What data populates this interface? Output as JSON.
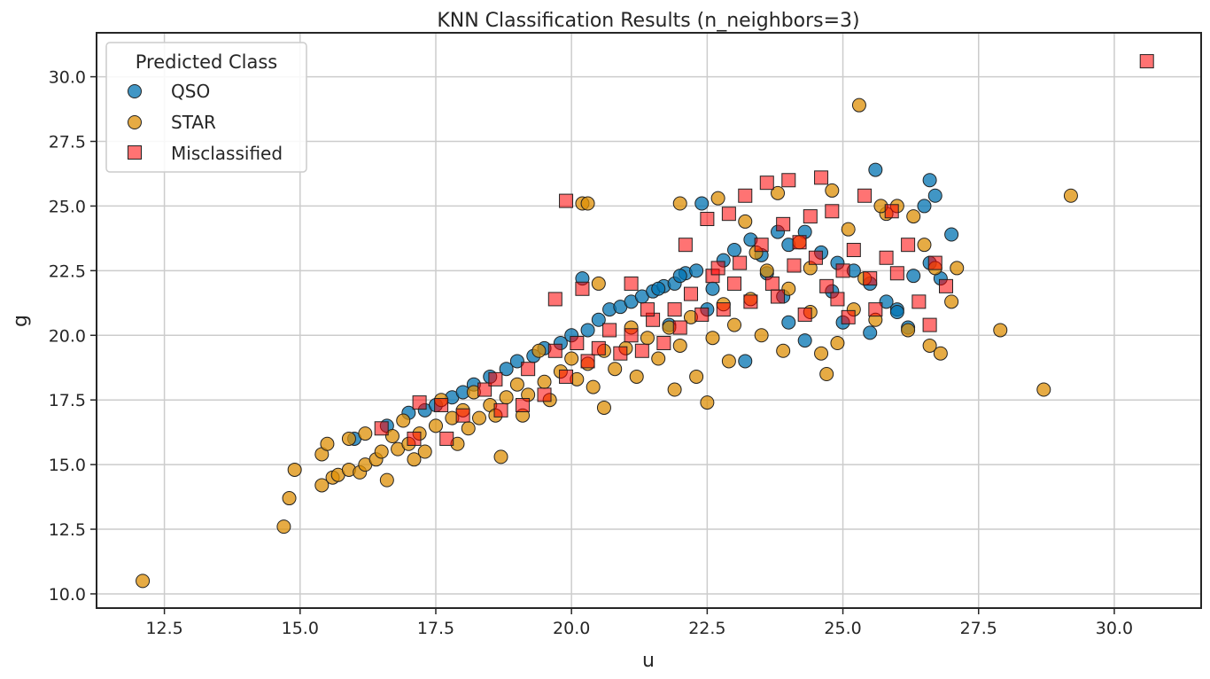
{
  "chart_data": {
    "type": "scatter",
    "title": "KNN Classification Results (n_neighbors=3)",
    "xlabel": "u",
    "ylabel": "g",
    "xlim": [
      11.25,
      31.6
    ],
    "ylim": [
      9.45,
      31.7
    ],
    "xticks": [
      12.5,
      15.0,
      17.5,
      20.0,
      22.5,
      25.0,
      27.5,
      30.0
    ],
    "xtick_labels": [
      "12.5",
      "15.0",
      "17.5",
      "20.0",
      "22.5",
      "25.0",
      "27.5",
      "30.0"
    ],
    "yticks": [
      10.0,
      12.5,
      15.0,
      17.5,
      20.0,
      22.5,
      25.0,
      27.5,
      30.0
    ],
    "ytick_labels": [
      "10.0",
      "12.5",
      "15.0",
      "17.5",
      "20.0",
      "22.5",
      "25.0",
      "27.5",
      "30.0"
    ],
    "grid": true,
    "legend": {
      "title": "Predicted Class",
      "location": "upper-left",
      "entries": [
        {
          "label": "QSO",
          "marker": "circle",
          "color": "#0173b2"
        },
        {
          "label": "STAR",
          "marker": "circle",
          "color": "#de8f05"
        },
        {
          "label": "Misclassified",
          "marker": "square",
          "color": "#ff0000"
        }
      ]
    },
    "series": [
      {
        "name": "QSO",
        "marker": "circle",
        "color": "#0173b2",
        "points": [
          [
            16.0,
            16.0
          ],
          [
            16.6,
            16.5
          ],
          [
            17.0,
            17.0
          ],
          [
            17.3,
            17.1
          ],
          [
            17.5,
            17.3
          ],
          [
            17.8,
            17.6
          ],
          [
            18.0,
            17.8
          ],
          [
            18.2,
            18.1
          ],
          [
            18.5,
            18.4
          ],
          [
            18.8,
            18.7
          ],
          [
            19.0,
            19.0
          ],
          [
            19.3,
            19.2
          ],
          [
            19.5,
            19.5
          ],
          [
            19.8,
            19.7
          ],
          [
            20.0,
            20.0
          ],
          [
            20.3,
            20.2
          ],
          [
            20.5,
            20.6
          ],
          [
            20.7,
            21.0
          ],
          [
            20.9,
            21.1
          ],
          [
            21.1,
            21.3
          ],
          [
            21.3,
            21.5
          ],
          [
            21.5,
            21.7
          ],
          [
            21.7,
            21.9
          ],
          [
            21.9,
            22.0
          ],
          [
            22.1,
            22.4
          ],
          [
            22.3,
            22.5
          ],
          [
            22.0,
            22.3
          ],
          [
            20.2,
            22.2
          ],
          [
            21.6,
            21.8
          ],
          [
            22.6,
            21.8
          ],
          [
            22.8,
            22.9
          ],
          [
            23.0,
            23.3
          ],
          [
            23.3,
            23.7
          ],
          [
            23.5,
            23.1
          ],
          [
            23.8,
            24.0
          ],
          [
            24.0,
            23.5
          ],
          [
            24.3,
            24.0
          ],
          [
            24.6,
            23.2
          ],
          [
            24.9,
            22.8
          ],
          [
            25.2,
            22.5
          ],
          [
            25.5,
            22.0
          ],
          [
            25.8,
            21.3
          ],
          [
            26.0,
            21.0
          ],
          [
            26.3,
            22.3
          ],
          [
            26.6,
            22.8
          ],
          [
            26.8,
            22.2
          ],
          [
            27.0,
            23.9
          ],
          [
            26.5,
            25.0
          ],
          [
            26.7,
            25.4
          ],
          [
            26.6,
            26.0
          ],
          [
            25.6,
            26.4
          ],
          [
            22.4,
            25.1
          ],
          [
            23.2,
            19.0
          ],
          [
            25.5,
            20.1
          ],
          [
            24.3,
            19.8
          ],
          [
            24.0,
            20.5
          ],
          [
            21.8,
            20.4
          ],
          [
            22.5,
            21.0
          ],
          [
            23.9,
            21.5
          ],
          [
            25.0,
            20.5
          ],
          [
            26.0,
            20.9
          ],
          [
            26.2,
            20.3
          ],
          [
            24.8,
            21.7
          ],
          [
            23.6,
            22.4
          ]
        ]
      },
      {
        "name": "STAR",
        "marker": "circle",
        "color": "#de8f05",
        "points": [
          [
            12.1,
            10.5
          ],
          [
            14.7,
            12.6
          ],
          [
            14.8,
            13.7
          ],
          [
            14.9,
            14.8
          ],
          [
            15.4,
            14.2
          ],
          [
            15.4,
            15.4
          ],
          [
            15.5,
            15.8
          ],
          [
            15.6,
            14.5
          ],
          [
            15.7,
            14.6
          ],
          [
            15.9,
            14.8
          ],
          [
            15.9,
            16.0
          ],
          [
            16.1,
            14.7
          ],
          [
            16.2,
            15.0
          ],
          [
            16.2,
            16.2
          ],
          [
            16.4,
            15.2
          ],
          [
            16.5,
            15.5
          ],
          [
            16.6,
            14.4
          ],
          [
            16.7,
            16.1
          ],
          [
            16.8,
            15.6
          ],
          [
            16.9,
            16.7
          ],
          [
            17.0,
            15.8
          ],
          [
            17.1,
            15.2
          ],
          [
            17.2,
            16.2
          ],
          [
            17.3,
            15.5
          ],
          [
            17.5,
            16.5
          ],
          [
            17.6,
            17.5
          ],
          [
            17.8,
            16.8
          ],
          [
            17.9,
            15.8
          ],
          [
            18.0,
            17.1
          ],
          [
            18.1,
            16.4
          ],
          [
            18.2,
            17.8
          ],
          [
            18.3,
            16.8
          ],
          [
            18.5,
            17.3
          ],
          [
            18.6,
            16.9
          ],
          [
            18.7,
            15.3
          ],
          [
            18.8,
            17.6
          ],
          [
            19.0,
            18.1
          ],
          [
            19.1,
            16.9
          ],
          [
            19.2,
            17.7
          ],
          [
            19.4,
            19.4
          ],
          [
            19.5,
            18.2
          ],
          [
            19.6,
            17.5
          ],
          [
            19.8,
            18.6
          ],
          [
            20.0,
            19.1
          ],
          [
            20.1,
            18.3
          ],
          [
            20.3,
            18.9
          ],
          [
            20.2,
            25.1
          ],
          [
            20.3,
            25.1
          ],
          [
            20.4,
            18.0
          ],
          [
            20.5,
            22.0
          ],
          [
            20.6,
            17.2
          ],
          [
            20.6,
            19.4
          ],
          [
            20.8,
            18.7
          ],
          [
            21.0,
            19.5
          ],
          [
            21.2,
            18.4
          ],
          [
            21.4,
            19.9
          ],
          [
            21.6,
            19.1
          ],
          [
            21.8,
            20.3
          ],
          [
            21.9,
            17.9
          ],
          [
            22.0,
            25.1
          ],
          [
            22.0,
            19.6
          ],
          [
            22.2,
            20.7
          ],
          [
            22.3,
            18.4
          ],
          [
            22.5,
            17.4
          ],
          [
            22.6,
            19.9
          ],
          [
            22.7,
            25.3
          ],
          [
            22.8,
            21.2
          ],
          [
            22.9,
            19.0
          ],
          [
            23.0,
            20.4
          ],
          [
            23.2,
            24.4
          ],
          [
            23.3,
            21.4
          ],
          [
            23.5,
            20.0
          ],
          [
            23.6,
            22.5
          ],
          [
            23.8,
            25.5
          ],
          [
            23.9,
            19.4
          ],
          [
            24.0,
            21.8
          ],
          [
            24.2,
            23.6
          ],
          [
            24.4,
            20.9
          ],
          [
            24.6,
            19.3
          ],
          [
            24.7,
            18.5
          ],
          [
            24.8,
            25.6
          ],
          [
            24.9,
            19.7
          ],
          [
            25.1,
            24.1
          ],
          [
            25.2,
            21.0
          ],
          [
            25.3,
            28.9
          ],
          [
            25.4,
            22.2
          ],
          [
            25.6,
            20.6
          ],
          [
            25.8,
            24.7
          ],
          [
            26.0,
            25.0
          ],
          [
            26.2,
            20.2
          ],
          [
            26.3,
            24.6
          ],
          [
            26.5,
            23.5
          ],
          [
            26.6,
            19.6
          ],
          [
            26.7,
            22.6
          ],
          [
            26.8,
            19.3
          ],
          [
            27.0,
            21.3
          ],
          [
            27.1,
            22.6
          ],
          [
            27.9,
            20.2
          ],
          [
            28.7,
            17.9
          ],
          [
            29.2,
            25.4
          ],
          [
            25.7,
            25.0
          ],
          [
            24.4,
            22.6
          ],
          [
            23.4,
            23.2
          ],
          [
            21.1,
            20.3
          ]
        ]
      },
      {
        "name": "Misclassified",
        "marker": "square",
        "color": "#ff0000",
        "points": [
          [
            30.6,
            30.6
          ],
          [
            19.9,
            25.2
          ],
          [
            19.7,
            21.4
          ],
          [
            20.2,
            21.8
          ],
          [
            21.1,
            22.0
          ],
          [
            16.5,
            16.4
          ],
          [
            17.2,
            17.4
          ],
          [
            17.6,
            17.3
          ],
          [
            17.1,
            16.0
          ],
          [
            17.7,
            16.0
          ],
          [
            18.0,
            16.9
          ],
          [
            18.4,
            17.9
          ],
          [
            18.6,
            18.3
          ],
          [
            18.7,
            17.1
          ],
          [
            19.1,
            17.3
          ],
          [
            19.2,
            18.7
          ],
          [
            19.5,
            17.7
          ],
          [
            19.7,
            19.4
          ],
          [
            19.9,
            18.4
          ],
          [
            20.1,
            19.7
          ],
          [
            20.3,
            19.0
          ],
          [
            20.5,
            19.5
          ],
          [
            20.7,
            20.2
          ],
          [
            20.9,
            19.3
          ],
          [
            21.1,
            20.0
          ],
          [
            21.3,
            19.4
          ],
          [
            21.5,
            20.6
          ],
          [
            21.7,
            19.7
          ],
          [
            21.9,
            21.0
          ],
          [
            22.0,
            20.3
          ],
          [
            22.1,
            23.5
          ],
          [
            22.2,
            21.6
          ],
          [
            22.4,
            20.8
          ],
          [
            22.5,
            24.5
          ],
          [
            22.6,
            22.3
          ],
          [
            22.8,
            21.0
          ],
          [
            22.9,
            24.7
          ],
          [
            23.1,
            22.8
          ],
          [
            23.2,
            25.4
          ],
          [
            23.3,
            21.3
          ],
          [
            23.5,
            23.5
          ],
          [
            23.6,
            25.9
          ],
          [
            23.7,
            22.0
          ],
          [
            23.9,
            24.3
          ],
          [
            24.0,
            26.0
          ],
          [
            24.1,
            22.7
          ],
          [
            24.3,
            20.8
          ],
          [
            24.4,
            24.6
          ],
          [
            24.5,
            23.0
          ],
          [
            24.6,
            26.1
          ],
          [
            24.7,
            21.9
          ],
          [
            24.8,
            24.8
          ],
          [
            25.0,
            22.5
          ],
          [
            25.1,
            20.7
          ],
          [
            25.2,
            23.3
          ],
          [
            25.4,
            25.4
          ],
          [
            25.5,
            22.2
          ],
          [
            25.6,
            21.0
          ],
          [
            25.8,
            23.0
          ],
          [
            25.9,
            24.8
          ],
          [
            26.0,
            22.4
          ],
          [
            26.2,
            23.5
          ],
          [
            26.4,
            21.3
          ],
          [
            26.6,
            20.4
          ],
          [
            26.7,
            22.8
          ],
          [
            26.9,
            21.9
          ],
          [
            23.0,
            22.0
          ],
          [
            23.8,
            21.5
          ],
          [
            24.2,
            23.6
          ],
          [
            22.7,
            22.6
          ],
          [
            24.9,
            21.4
          ],
          [
            21.4,
            21.0
          ]
        ]
      }
    ]
  }
}
